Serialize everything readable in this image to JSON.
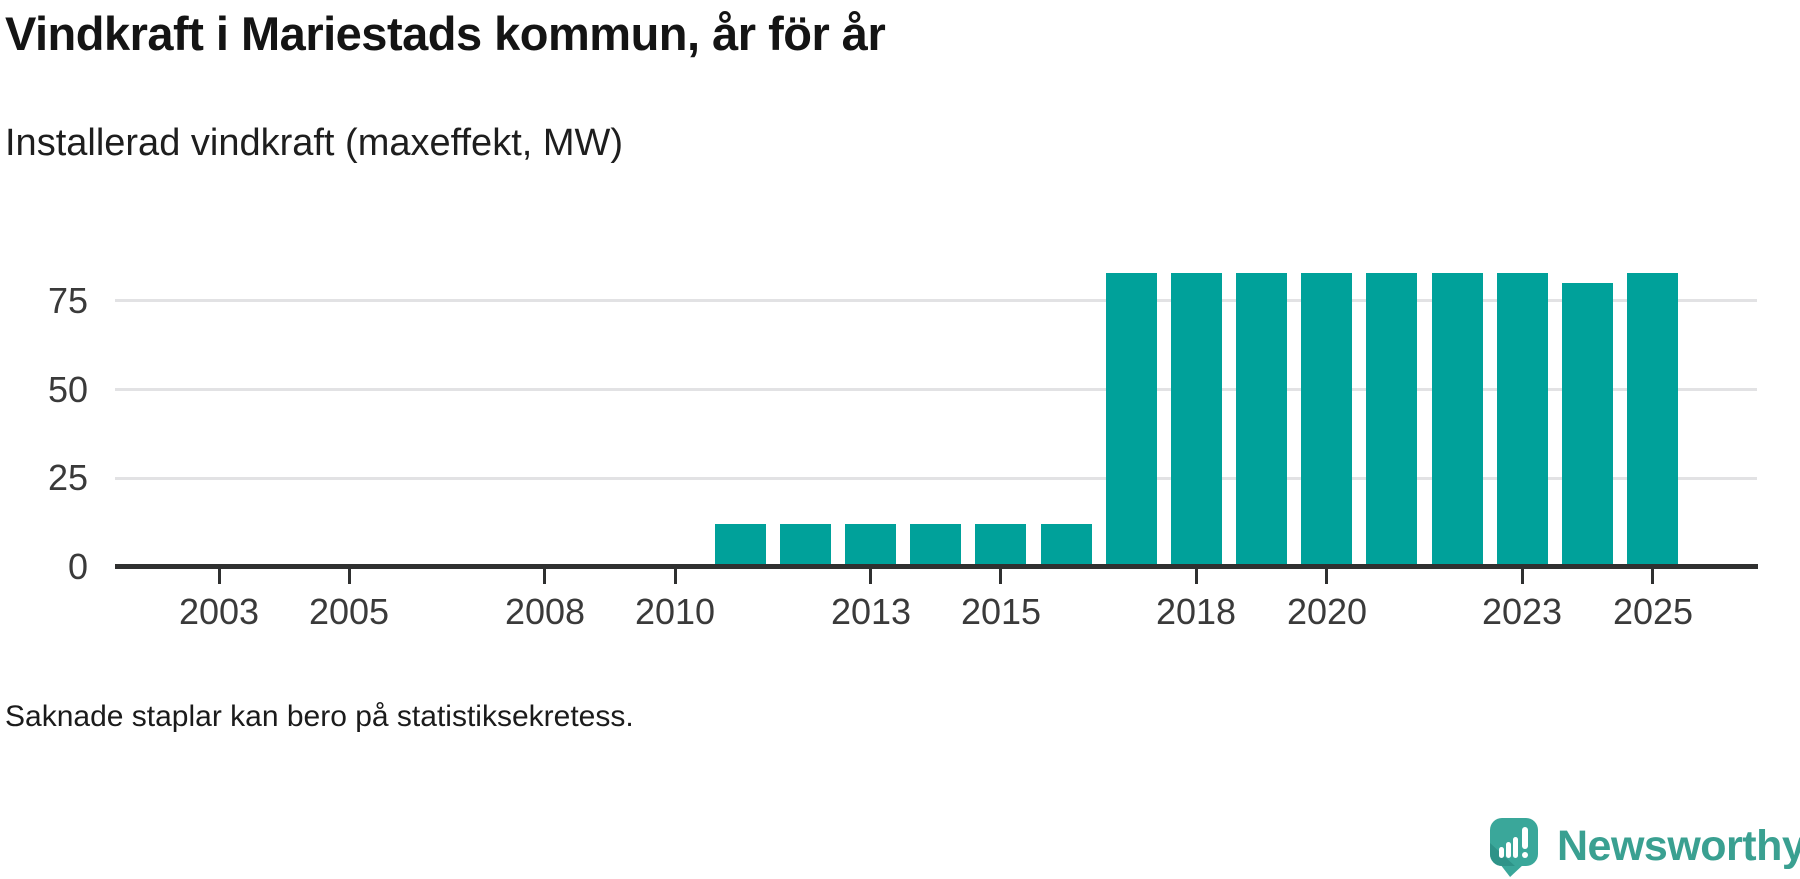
{
  "header": {
    "title": "Vindkraft i Mariestads kommun, år för år",
    "subtitle": "Installerad vindkraft (maxeffekt, MW)"
  },
  "footer": {
    "note": "Saknade staplar kan bero på statistiksekretess."
  },
  "branding": {
    "name": "Newsworthy",
    "logo_icon": "speech-bubble-bar-chart-icon"
  },
  "colors": {
    "bar": "#00a19a",
    "axis": "#2f3030",
    "gridline": "#e2e2e4",
    "tick_label": "#3a3a3a",
    "logo_teal": "#3aa79a",
    "logo_teal_dark": "#2e9388",
    "logo_text_teal": "#3aa091"
  },
  "chart_data": {
    "type": "bar",
    "title": "Vindkraft i Mariestads kommun, år för år",
    "subtitle": "Installerad vindkraft (maxeffekt, MW)",
    "xlabel": "",
    "ylabel": "Installerad vindkraft (maxeffekt, MW)",
    "x": [
      2002,
      2003,
      2004,
      2005,
      2006,
      2007,
      2008,
      2009,
      2010,
      2011,
      2012,
      2013,
      2014,
      2015,
      2016,
      2017,
      2018,
      2019,
      2020,
      2021,
      2022,
      2023,
      2024,
      2025
    ],
    "values": [
      null,
      null,
      null,
      null,
      null,
      null,
      null,
      null,
      null,
      12,
      12,
      12,
      12,
      12,
      12,
      83,
      83,
      83,
      83,
      83,
      83,
      83,
      80,
      83
    ],
    "unit": "MW",
    "missing_data_note": "Saknade staplar kan bero på statistiksekretess.",
    "xticks": [
      2003,
      2005,
      2008,
      2010,
      2013,
      2015,
      2018,
      2020,
      2023,
      2025
    ],
    "yticks": [
      0,
      25,
      50,
      75
    ],
    "ylim": [
      0,
      95
    ],
    "grid": "horizontal",
    "legend": "none"
  }
}
